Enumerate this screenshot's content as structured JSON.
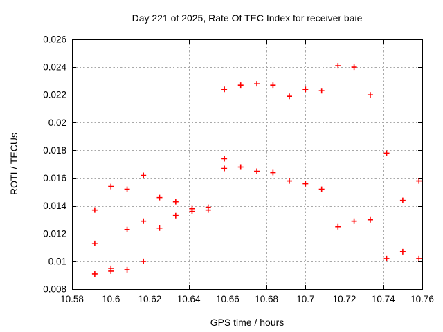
{
  "page": {
    "background": "#ffffff"
  },
  "chart_data": {
    "type": "scatter",
    "title": "Day 221 of 2025, Rate Of TEC Index for receiver baie",
    "xlabel": "GPS time / hours",
    "ylabel": "ROTI / TECUs",
    "xlim": [
      10.58,
      10.76
    ],
    "ylim": [
      0.008,
      0.026
    ],
    "grid": true,
    "legend": "none",
    "marker": {
      "shape": "plus",
      "color": "#ff0000",
      "size": 8
    },
    "colors": {
      "grid": "#a8a8a8",
      "axis": "#000000",
      "text": "#000000",
      "point": "#ff0000"
    },
    "xticks": [
      {
        "value": 10.58,
        "label": "10.58"
      },
      {
        "value": 10.6,
        "label": "10.6"
      },
      {
        "value": 10.62,
        "label": "10.62"
      },
      {
        "value": 10.64,
        "label": "10.64"
      },
      {
        "value": 10.66,
        "label": "10.66"
      },
      {
        "value": 10.68,
        "label": "10.68"
      },
      {
        "value": 10.7,
        "label": "10.7"
      },
      {
        "value": 10.72,
        "label": "10.72"
      },
      {
        "value": 10.74,
        "label": "10.74"
      },
      {
        "value": 10.76,
        "label": "10.76"
      }
    ],
    "yticks": [
      {
        "value": 0.008,
        "label": "0.008"
      },
      {
        "value": 0.01,
        "label": "0.01"
      },
      {
        "value": 0.012,
        "label": "0.012"
      },
      {
        "value": 0.014,
        "label": "0.014"
      },
      {
        "value": 0.016,
        "label": "0.016"
      },
      {
        "value": 0.018,
        "label": "0.018"
      },
      {
        "value": 0.02,
        "label": "0.02"
      },
      {
        "value": 0.022,
        "label": "0.022"
      },
      {
        "value": 0.024,
        "label": "0.024"
      },
      {
        "value": 0.026,
        "label": "0.026"
      }
    ],
    "series": [
      {
        "name": "ROTI",
        "color": "#ff0000",
        "points": [
          [
            10.5917,
            0.0137
          ],
          [
            10.5917,
            0.0113
          ],
          [
            10.5917,
            0.0091
          ],
          [
            10.6,
            0.0154
          ],
          [
            10.6,
            0.0095
          ],
          [
            10.6,
            0.0093
          ],
          [
            10.6083,
            0.0152
          ],
          [
            10.6083,
            0.0123
          ],
          [
            10.6083,
            0.0094
          ],
          [
            10.6167,
            0.0162
          ],
          [
            10.6167,
            0.0129
          ],
          [
            10.6167,
            0.01
          ],
          [
            10.625,
            0.0146
          ],
          [
            10.625,
            0.0124
          ],
          [
            10.6333,
            0.0143
          ],
          [
            10.6333,
            0.0133
          ],
          [
            10.6417,
            0.0138
          ],
          [
            10.6417,
            0.0136
          ],
          [
            10.65,
            0.0139
          ],
          [
            10.65,
            0.0137
          ],
          [
            10.6583,
            0.0224
          ],
          [
            10.6583,
            0.0174
          ],
          [
            10.6583,
            0.0167
          ],
          [
            10.6667,
            0.0227
          ],
          [
            10.6667,
            0.0168
          ],
          [
            10.675,
            0.0228
          ],
          [
            10.675,
            0.0165
          ],
          [
            10.6833,
            0.0227
          ],
          [
            10.6833,
            0.0164
          ],
          [
            10.6917,
            0.0219
          ],
          [
            10.6917,
            0.0158
          ],
          [
            10.7,
            0.0224
          ],
          [
            10.7,
            0.0156
          ],
          [
            10.7083,
            0.0223
          ],
          [
            10.7083,
            0.0152
          ],
          [
            10.7167,
            0.0241
          ],
          [
            10.7167,
            0.0125
          ],
          [
            10.725,
            0.024
          ],
          [
            10.725,
            0.0129
          ],
          [
            10.7333,
            0.022
          ],
          [
            10.7333,
            0.013
          ],
          [
            10.7417,
            0.0178
          ],
          [
            10.7417,
            0.0102
          ],
          [
            10.75,
            0.0144
          ],
          [
            10.75,
            0.0107
          ],
          [
            10.7583,
            0.0158
          ],
          [
            10.7583,
            0.0102
          ]
        ]
      }
    ]
  }
}
